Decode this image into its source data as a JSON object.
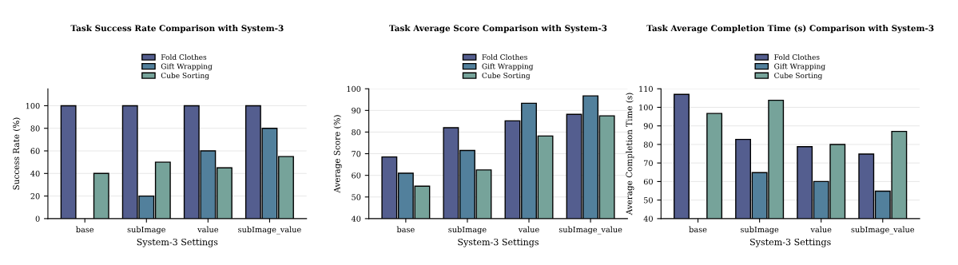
{
  "chart_data": [
    {
      "type": "bar",
      "title": "Task Success Rate Comparison with System-3",
      "xlabel": "System-3 Settings",
      "ylabel": "Success Rate (%)",
      "categories": [
        "base",
        "subImage",
        "value",
        "subImage_value"
      ],
      "series": [
        {
          "name": "Fold Clothes",
          "color": "#545e8f",
          "values": [
            100,
            100,
            100,
            100
          ]
        },
        {
          "name": "Gift Wrapping",
          "color": "#52809c",
          "values": [
            null,
            20,
            60,
            80
          ]
        },
        {
          "name": "Cube Sorting",
          "color": "#76a39a",
          "values": [
            40,
            50,
            45,
            55
          ]
        }
      ],
      "ylim": [
        0,
        115
      ],
      "yticks": [
        0,
        20,
        40,
        60,
        80,
        100
      ],
      "grid": "y",
      "legend": "top"
    },
    {
      "type": "bar",
      "title": "Task Average Score Comparison with System-3",
      "xlabel": "System-3 Settings",
      "ylabel": "Average Score (%)",
      "categories": [
        "base",
        "subImage",
        "value",
        "subImage_value"
      ],
      "series": [
        {
          "name": "Fold Clothes",
          "color": "#545e8f",
          "values": [
            68.5,
            82,
            85.2,
            88.2
          ]
        },
        {
          "name": "Gift Wrapping",
          "color": "#52809c",
          "values": [
            61,
            71.5,
            93.3,
            96.7
          ]
        },
        {
          "name": "Cube Sorting",
          "color": "#76a39a",
          "values": [
            55,
            62.5,
            78.2,
            87.5
          ]
        }
      ],
      "ylim": [
        40,
        100
      ],
      "yticks": [
        40,
        50,
        60,
        70,
        80,
        90,
        100
      ],
      "grid": "y",
      "legend": "top"
    },
    {
      "type": "bar",
      "title": "Task Average Completion Time (s) Comparison with System-3",
      "xlabel": "System-3 Settings",
      "ylabel": "Average Completion Time (s)",
      "categories": [
        "base",
        "subImage",
        "value",
        "subImage_value"
      ],
      "series": [
        {
          "name": "Fold Clothes",
          "color": "#545e8f",
          "values": [
            107,
            82.7,
            78.8,
            74.8
          ]
        },
        {
          "name": "Gift Wrapping",
          "color": "#52809c",
          "values": [
            null,
            64.8,
            60,
            54.8
          ]
        },
        {
          "name": "Cube Sorting",
          "color": "#76a39a",
          "values": [
            96.7,
            103.8,
            80,
            87
          ]
        }
      ],
      "ylim": [
        40,
        110
      ],
      "yticks": [
        40,
        50,
        60,
        70,
        80,
        90,
        100,
        110
      ],
      "grid": "y",
      "legend": "top"
    }
  ]
}
